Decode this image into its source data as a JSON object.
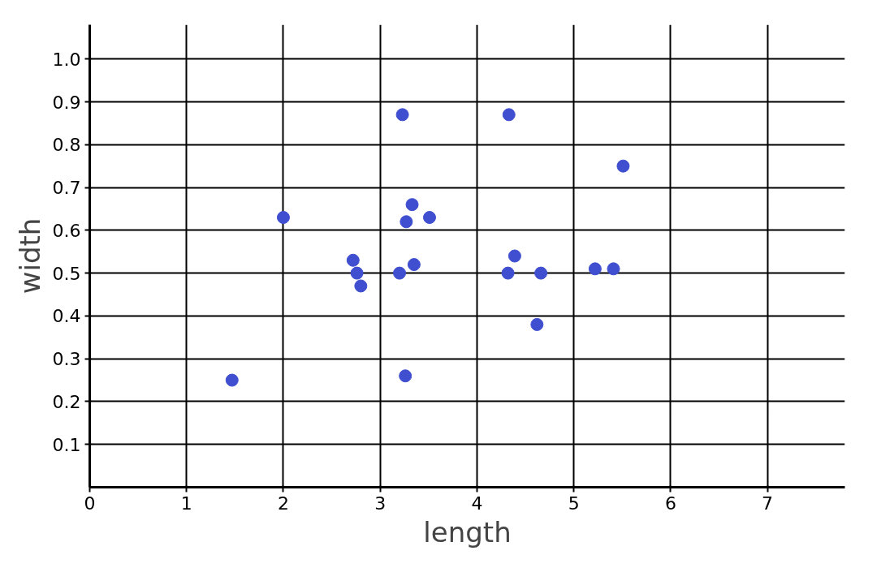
{
  "chart_data": {
    "type": "scatter",
    "xlabel": "length",
    "ylabel": "width",
    "x": [
      1.47,
      2.0,
      2.72,
      2.76,
      2.8,
      3.2,
      3.23,
      3.26,
      3.27,
      3.33,
      3.35,
      3.51,
      4.32,
      4.33,
      4.39,
      4.62,
      4.66,
      5.22,
      5.41,
      5.51
    ],
    "series": [
      {
        "color": "#3f4fd0",
        "values": [
          0.25,
          0.63,
          0.53,
          0.5,
          0.47,
          0.5,
          0.87,
          0.26,
          0.62,
          0.66,
          0.52,
          0.63,
          0.5,
          0.87,
          0.54,
          0.38,
          0.5,
          0.51,
          0.51,
          0.75
        ]
      }
    ],
    "xlim": [
      0,
      7.8
    ],
    "ylim": [
      0,
      1.08
    ],
    "xticks": [
      0,
      1,
      2,
      3,
      4,
      5,
      6,
      7
    ],
    "yticks": [
      0.1,
      0.2,
      0.3,
      0.4,
      0.5,
      0.6,
      0.7,
      0.8,
      0.9,
      {
        "value": 1,
        "label": "1.0"
      }
    ],
    "grid": true,
    "marker": "circle"
  }
}
